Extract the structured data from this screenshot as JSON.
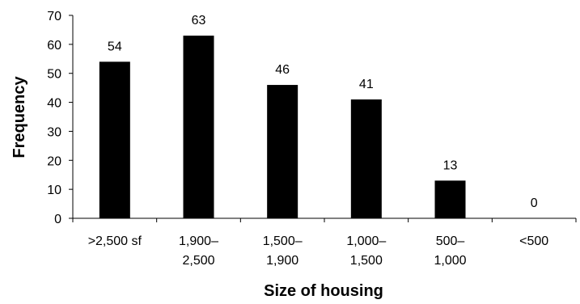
{
  "chart_data": {
    "type": "bar",
    "categories": [
      [
        ">2,500 sf"
      ],
      [
        "1,900–",
        "2,500"
      ],
      [
        "1,500–",
        "1,900"
      ],
      [
        "1,000–",
        "1,500"
      ],
      [
        "500–",
        "1,000"
      ],
      [
        "<500"
      ]
    ],
    "values": [
      54,
      63,
      46,
      41,
      13,
      0
    ],
    "data_labels": [
      "54",
      "63",
      "46",
      "41",
      "13",
      "0"
    ],
    "xlabel": "Size of housing",
    "ylabel": "Frequency",
    "ylim": [
      0,
      70
    ],
    "yticks": [
      0,
      10,
      20,
      30,
      40,
      50,
      60,
      70
    ],
    "grid": false,
    "legend": "none",
    "bar_color": "#000000"
  }
}
